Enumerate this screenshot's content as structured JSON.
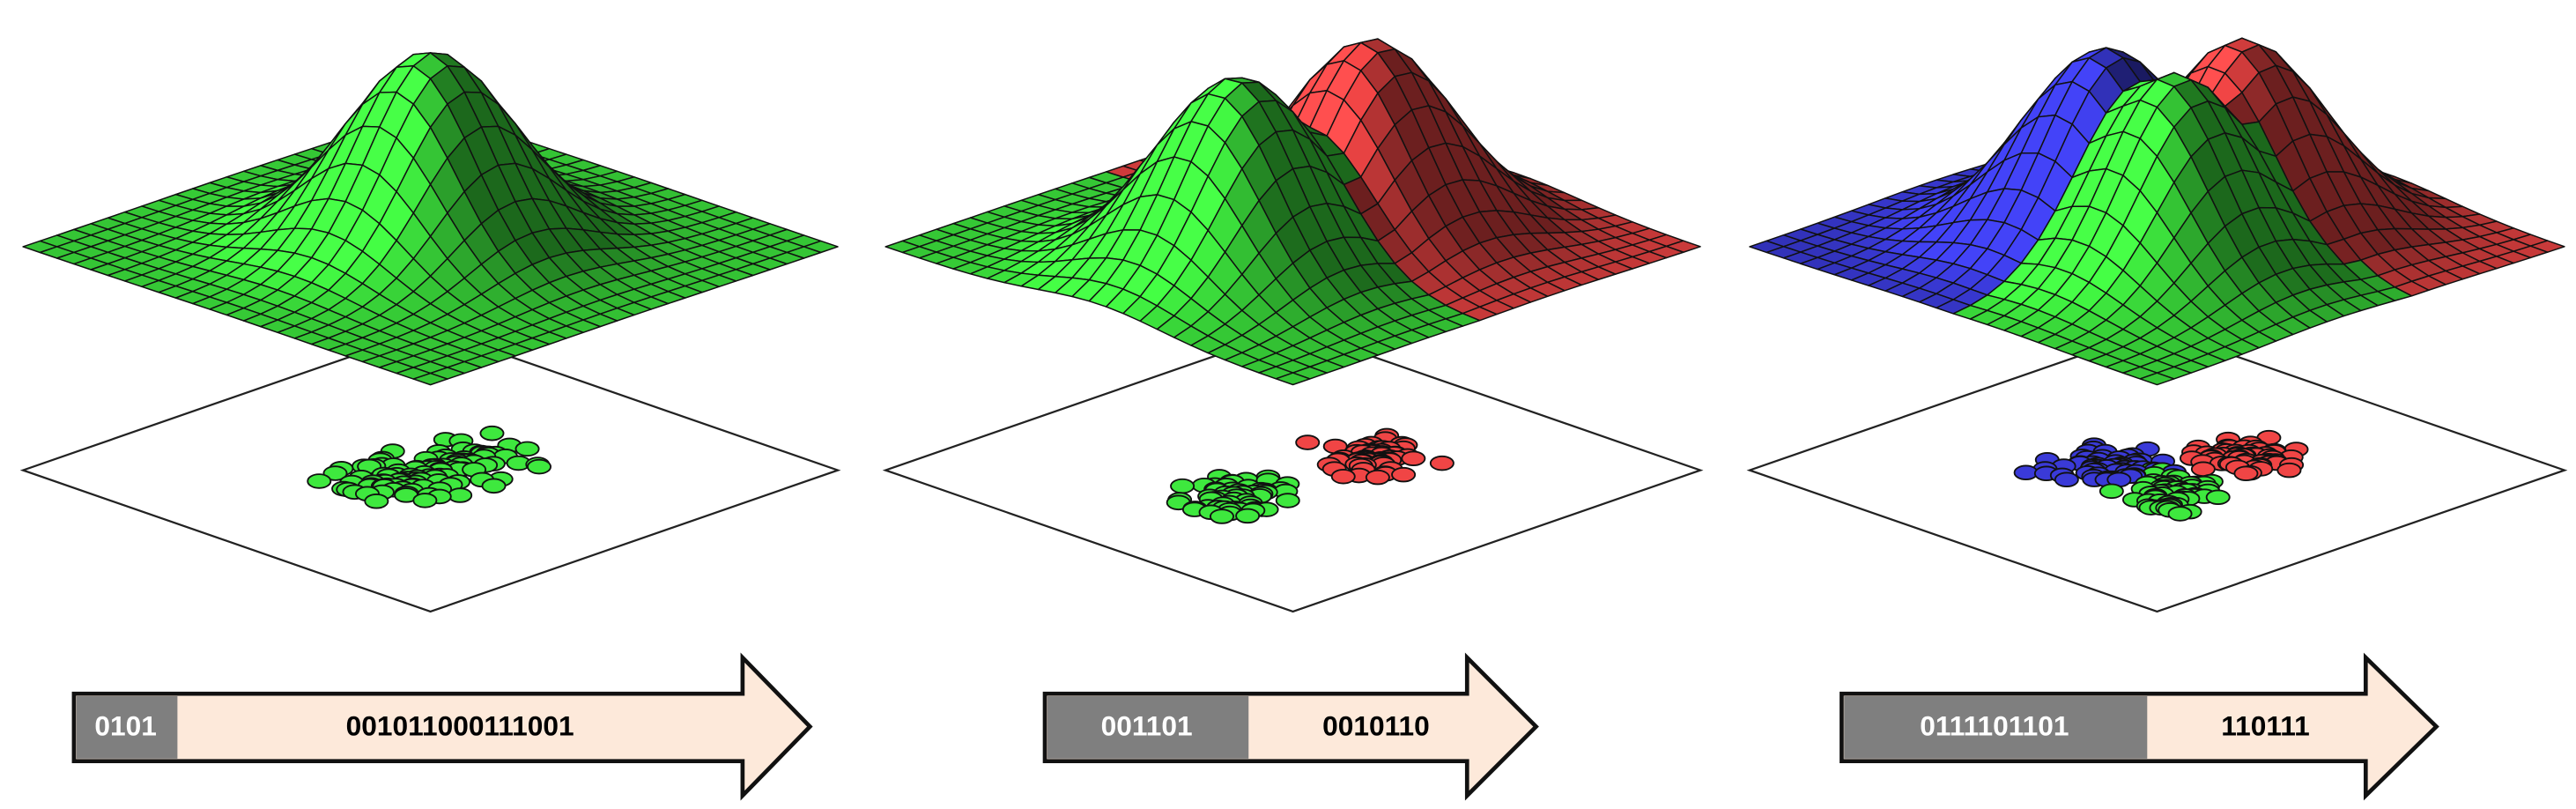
{
  "panels": [
    {
      "arrow": {
        "gray": "0101",
        "peach": "001011000111001"
      }
    },
    {
      "arrow": {
        "gray": "001101",
        "peach": "0010110"
      }
    },
    {
      "arrow": {
        "gray": "0111101101",
        "peach": "110111"
      }
    }
  ]
}
